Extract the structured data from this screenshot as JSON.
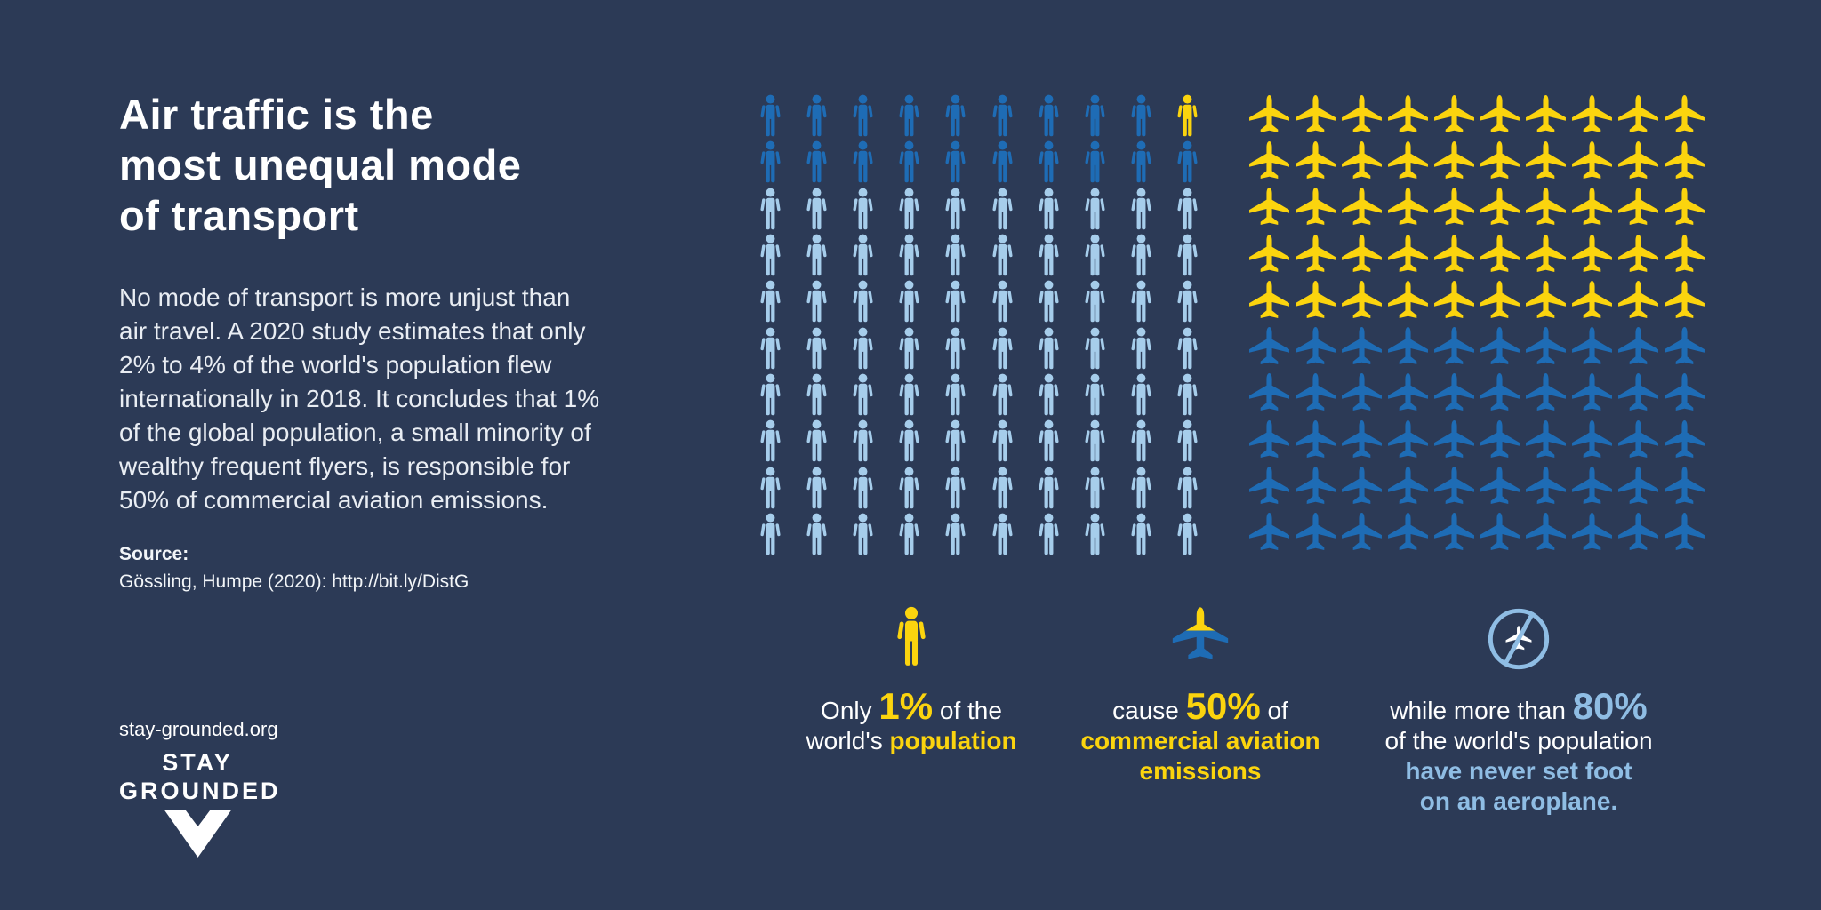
{
  "colors": {
    "background": "#2c3a56",
    "white": "#ffffff",
    "yellow": "#fbd40e",
    "medium_blue": "#1e6cb5",
    "light_blue": "#a6cdeb",
    "caption_light_blue": "#8fbde4"
  },
  "header": {
    "title": "Air traffic is the\nmost unequal mode\nof transport",
    "body": "No mode of transport is more unjust than\nair travel. A 2020 study estimates that only\n2% to 4% of the world's population flew\ninternationally in 2018. It concludes that 1%\nof the global population, a small minority of\nwealthy frequent flyers, is responsible for\n50% of commercial aviation emissions.",
    "source_label": "Source:",
    "source_text": "Gössling, Humpe (2020): http://bit.ly/DistG"
  },
  "footer": {
    "website": "stay-grounded.org",
    "logo_text": "STAY\nGROUNDED"
  },
  "chart_data": [
    {
      "type": "pictogram",
      "name": "world-population",
      "icon": "person",
      "unit": "1 icon = 1% of the world's population",
      "grid": {
        "rows": 10,
        "cols": 10
      },
      "segments": [
        {
          "label": "other flyers",
          "color_key": "medium_blue",
          "count": 9
        },
        {
          "label": "wealthy frequent flyers (1%)",
          "color_key": "yellow",
          "count": 1
        },
        {
          "label": "other flyers",
          "color_key": "medium_blue",
          "count": 10
        },
        {
          "label": "people who have never flown (80%)",
          "color_key": "light_blue",
          "count": 80
        }
      ]
    },
    {
      "type": "pictogram",
      "name": "aviation-emissions",
      "icon": "plane",
      "unit": "1 icon = 1% of commercial aviation emissions",
      "grid": {
        "rows": 10,
        "cols": 10
      },
      "segments": [
        {
          "label": "emissions caused by the 1% (50%)",
          "color_key": "yellow",
          "count": 50
        },
        {
          "label": "remaining commercial aviation emissions (50%)",
          "color_key": "medium_blue",
          "count": 50
        }
      ]
    }
  ],
  "captions": [
    {
      "pre": "Only ",
      "big": "1%",
      "mid": " of the\nworld's ",
      "strong": "population"
    },
    {
      "pre": "cause ",
      "big": "50%",
      "mid": " of\n",
      "strong": "commercial aviation\nemissions"
    },
    {
      "pre": "while more than ",
      "big": "80%",
      "mid": "\nof the world's population\n",
      "strong": "have never set foot\non an aeroplane."
    }
  ]
}
